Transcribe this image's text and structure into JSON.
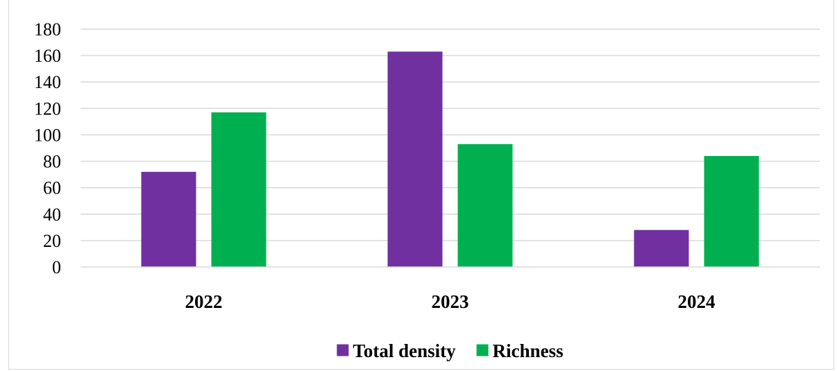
{
  "chart_data": {
    "type": "bar",
    "categories": [
      "2022",
      "2023",
      "2024"
    ],
    "series": [
      {
        "name": "Total density",
        "values": [
          72,
          163,
          28
        ],
        "color": "#7030a0"
      },
      {
        "name": "Richness",
        "values": [
          117,
          93,
          84
        ],
        "color": "#00b050"
      }
    ],
    "title": "",
    "xlabel": "",
    "ylabel": "",
    "ylim": [
      0,
      180
    ],
    "yticks": [
      "0",
      "20",
      "40",
      "60",
      "80",
      "100",
      "120",
      "140",
      "160",
      "180"
    ],
    "grid": true,
    "legend_position": "bottom-center"
  }
}
